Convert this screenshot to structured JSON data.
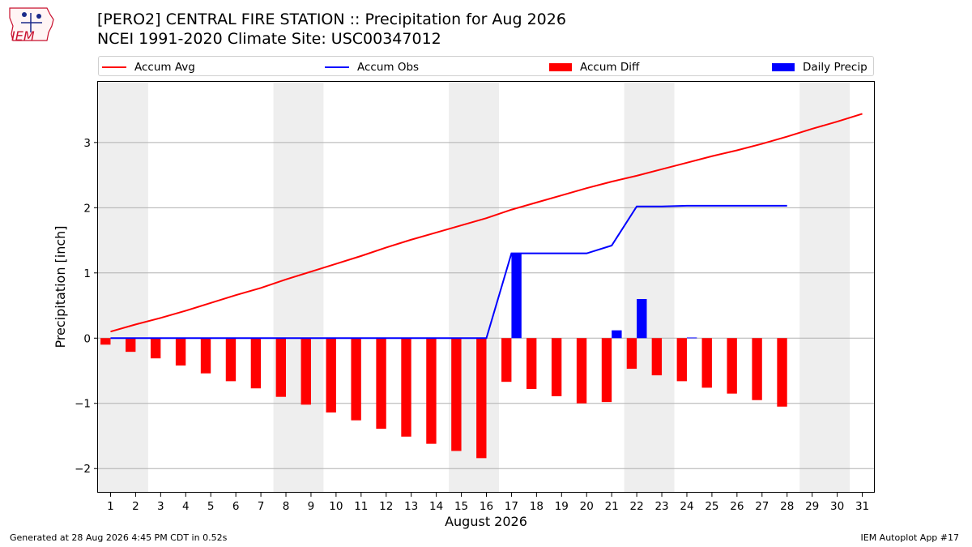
{
  "logo": {
    "text": "IEM",
    "color": "#c8102e"
  },
  "title": {
    "line1": "[PERO2] CENTRAL FIRE STATION :: Precipitation for Aug 2026",
    "line2": "NCEI 1991-2020 Climate Site: USC00347012"
  },
  "legend": [
    {
      "label": "Accum Avg",
      "kind": "line",
      "color": "#ff0000"
    },
    {
      "label": "Accum Obs",
      "kind": "line",
      "color": "#0000ff"
    },
    {
      "label": "Accum Diff",
      "kind": "bar",
      "color": "#ff0000"
    },
    {
      "label": "Daily Precip",
      "kind": "bar",
      "color": "#0000ff"
    }
  ],
  "footer": {
    "left": "Generated at 28 Aug 2026 4:45 PM CDT in 0.52s",
    "right": "IEM Autoplot App #17"
  },
  "chart_data": {
    "type": "bar",
    "xlabel": "August 2026",
    "ylabel": "Precipitation [inch]",
    "ylim": [
      -2.37,
      3.93
    ],
    "xlim": [
      0.5,
      31.5
    ],
    "yticks": [
      -2,
      -1,
      0,
      1,
      2,
      3
    ],
    "ytick_labels": [
      "−2",
      "−1",
      "0",
      "1",
      "2",
      "3"
    ],
    "days": [
      1,
      2,
      3,
      4,
      5,
      6,
      7,
      8,
      9,
      10,
      11,
      12,
      13,
      14,
      15,
      16,
      17,
      18,
      19,
      20,
      21,
      22,
      23,
      24,
      25,
      26,
      27,
      28,
      29,
      30,
      31
    ],
    "weekend_day_pairs": [
      [
        1,
        2
      ],
      [
        8,
        9
      ],
      [
        15,
        16
      ],
      [
        22,
        23
      ],
      [
        29,
        30
      ]
    ],
    "grid": "horizontal",
    "series": [
      {
        "name": "Accum Avg",
        "kind": "line",
        "color": "#ff0000",
        "values": [
          0.1,
          0.21,
          0.31,
          0.42,
          0.54,
          0.66,
          0.77,
          0.9,
          1.02,
          1.14,
          1.26,
          1.39,
          1.51,
          1.62,
          1.73,
          1.84,
          1.97,
          2.08,
          2.19,
          2.3,
          2.4,
          2.49,
          2.59,
          2.69,
          2.79,
          2.88,
          2.98,
          3.09,
          3.21,
          3.32,
          3.44
        ]
      },
      {
        "name": "Accum Obs",
        "kind": "line",
        "color": "#0000ff",
        "values": [
          0,
          0,
          0,
          0,
          0,
          0,
          0,
          0,
          0,
          0,
          0,
          0,
          0,
          0,
          0,
          0,
          1.3,
          1.3,
          1.3,
          1.3,
          1.42,
          2.02,
          2.02,
          2.03,
          2.03,
          2.03,
          2.03,
          2.03
        ]
      },
      {
        "name": "Accum Diff",
        "kind": "bar",
        "color": "#ff0000",
        "values": [
          -0.1,
          -0.21,
          -0.31,
          -0.42,
          -0.54,
          -0.66,
          -0.77,
          -0.9,
          -1.02,
          -1.14,
          -1.26,
          -1.39,
          -1.51,
          -1.62,
          -1.73,
          -1.84,
          -0.67,
          -0.78,
          -0.89,
          -1.0,
          -0.98,
          -0.47,
          -0.57,
          -0.66,
          -0.76,
          -0.85,
          -0.95,
          -1.05
        ]
      },
      {
        "name": "Daily Precip",
        "kind": "bar",
        "color": "#0000ff",
        "values": [
          0,
          0,
          0,
          0,
          0,
          0,
          0,
          0,
          0,
          0,
          0,
          0,
          0,
          0,
          0,
          0,
          1.3,
          0,
          0,
          0,
          0.12,
          0.6,
          0,
          0.01,
          0,
          0,
          0,
          0
        ]
      }
    ]
  }
}
